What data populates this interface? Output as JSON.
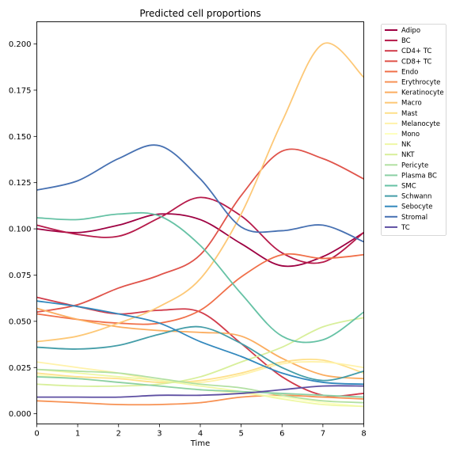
{
  "chart_data": {
    "type": "line",
    "title": "Predicted cell proportions",
    "xlabel": "Time",
    "ylabel": "",
    "xlim": [
      0,
      8
    ],
    "ylim": [
      -0.0055,
      0.212
    ],
    "xticks": [
      0,
      1,
      2,
      3,
      4,
      5,
      6,
      7,
      8
    ],
    "xtick_labels": [
      "0",
      "1",
      "2",
      "3",
      "4",
      "5",
      "6",
      "7",
      "8"
    ],
    "yticks": [
      0.0,
      0.025,
      0.05,
      0.075,
      0.1,
      0.125,
      0.15,
      0.175,
      0.2
    ],
    "ytick_labels": [
      "0.000",
      "0.025",
      "0.050",
      "0.075",
      "0.100",
      "0.125",
      "0.150",
      "0.175",
      "0.200"
    ],
    "grid": false,
    "legend_position": "outside-right",
    "x": [
      0,
      1,
      2,
      3,
      4,
      5,
      6,
      7,
      8
    ],
    "series": [
      {
        "name": "Adipo",
        "color": "#9e0142",
        "values": [
          0.1,
          0.098,
          0.102,
          0.108,
          0.105,
          0.092,
          0.08,
          0.085,
          0.098
        ]
      },
      {
        "name": "BC",
        "color": "#b61a4a",
        "values": [
          0.102,
          0.097,
          0.096,
          0.106,
          0.117,
          0.107,
          0.087,
          0.082,
          0.098
        ]
      },
      {
        "name": "CD4+ TC",
        "color": "#d13c4b",
        "values": [
          0.063,
          0.058,
          0.054,
          0.056,
          0.055,
          0.038,
          0.02,
          0.01,
          0.011
        ]
      },
      {
        "name": "CD8+ TC",
        "color": "#e0544b",
        "values": [
          0.055,
          0.059,
          0.068,
          0.075,
          0.086,
          0.118,
          0.142,
          0.138,
          0.127
        ]
      },
      {
        "name": "Endo",
        "color": "#f0704a",
        "values": [
          0.054,
          0.051,
          0.049,
          0.049,
          0.056,
          0.074,
          0.086,
          0.084,
          0.086
        ]
      },
      {
        "name": "Erythrocyte",
        "color": "#f79254",
        "values": [
          0.007,
          0.006,
          0.005,
          0.005,
          0.006,
          0.009,
          0.01,
          0.009,
          0.008
        ]
      },
      {
        "name": "Keratinocyte",
        "color": "#fbad60",
        "values": [
          0.057,
          0.051,
          0.047,
          0.045,
          0.044,
          0.042,
          0.03,
          0.021,
          0.019
        ]
      },
      {
        "name": "Macro",
        "color": "#fdc877",
        "values": [
          0.039,
          0.042,
          0.049,
          0.058,
          0.073,
          0.108,
          0.158,
          0.2,
          0.182
        ]
      },
      {
        "name": "Mast",
        "color": "#fee08b",
        "values": [
          0.022,
          0.02,
          0.019,
          0.017,
          0.018,
          0.022,
          0.028,
          0.029,
          0.022
        ]
      },
      {
        "name": "Melanocyte",
        "color": "#fff2aa",
        "values": [
          0.028,
          0.025,
          0.022,
          0.018,
          0.017,
          0.021,
          0.027,
          0.028,
          0.025
        ]
      },
      {
        "name": "Mono",
        "color": "#feffbe",
        "values": [
          0.021,
          0.019,
          0.017,
          0.015,
          0.013,
          0.011,
          0.009,
          0.006,
          0.004
        ]
      },
      {
        "name": "NK",
        "color": "#eff8a6",
        "values": [
          0.024,
          0.022,
          0.02,
          0.018,
          0.015,
          0.012,
          0.008,
          0.005,
          0.004
        ]
      },
      {
        "name": "NKT",
        "color": "#d8ef9b",
        "values": [
          0.016,
          0.015,
          0.015,
          0.016,
          0.02,
          0.028,
          0.036,
          0.047,
          0.052
        ]
      },
      {
        "name": "Pericyte",
        "color": "#b2e0a2",
        "values": [
          0.024,
          0.023,
          0.022,
          0.019,
          0.016,
          0.014,
          0.01,
          0.007,
          0.006
        ]
      },
      {
        "name": "Plasma BC",
        "color": "#8bd0a4",
        "values": [
          0.02,
          0.019,
          0.017,
          0.015,
          0.013,
          0.012,
          0.011,
          0.01,
          0.009
        ]
      },
      {
        "name": "SMC",
        "color": "#66c2a5",
        "values": [
          0.106,
          0.105,
          0.108,
          0.107,
          0.091,
          0.065,
          0.042,
          0.04,
          0.055
        ]
      },
      {
        "name": "Schwann",
        "color": "#449da8",
        "values": [
          0.036,
          0.035,
          0.037,
          0.043,
          0.047,
          0.038,
          0.025,
          0.018,
          0.023
        ]
      },
      {
        "name": "Sebocyte",
        "color": "#3288bd",
        "values": [
          0.061,
          0.058,
          0.054,
          0.049,
          0.039,
          0.031,
          0.022,
          0.017,
          0.016
        ]
      },
      {
        "name": "Stromal",
        "color": "#4771b2",
        "values": [
          0.121,
          0.126,
          0.138,
          0.145,
          0.127,
          0.101,
          0.099,
          0.102,
          0.093
        ]
      },
      {
        "name": "TC",
        "color": "#5e4fa2",
        "values": [
          0.009,
          0.009,
          0.009,
          0.01,
          0.01,
          0.011,
          0.013,
          0.015,
          0.015
        ]
      }
    ]
  }
}
